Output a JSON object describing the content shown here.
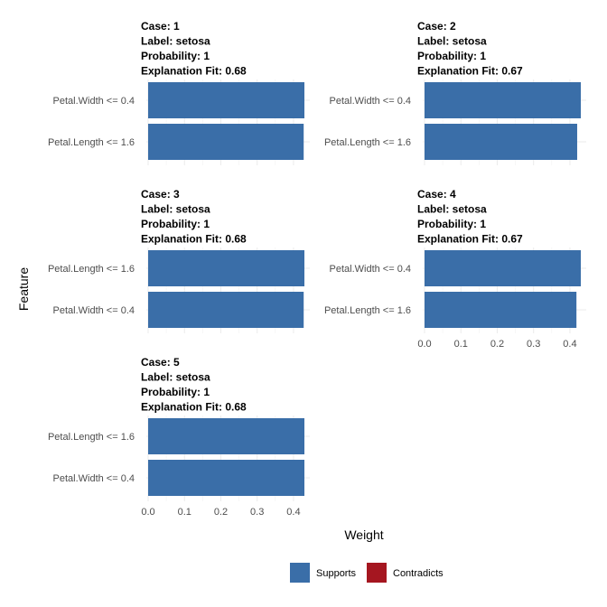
{
  "chart_data": {
    "type": "bar",
    "orientation": "horizontal",
    "xlabel": "Weight",
    "ylabel": "Feature",
    "xlim": [
      0,
      0.43
    ],
    "x_ticks": [
      "0.0",
      "0.1",
      "0.2",
      "0.3",
      "0.4"
    ],
    "grid": true,
    "colors": {
      "Supports": "#3a6ea8",
      "Contradicts": "#a51620"
    },
    "legend": {
      "position": "bottom",
      "items": [
        {
          "label": "Supports",
          "color": "#3a6ea8"
        },
        {
          "label": "Contradicts",
          "color": "#a51620"
        }
      ]
    },
    "facets": [
      {
        "title_lines": [
          "Case: 1",
          "Label: setosa",
          "Probability: 1",
          "Explanation Fit: 0.68"
        ],
        "bars": [
          {
            "feature": "Petal.Width <= 0.4",
            "weight": 0.43,
            "type": "Supports"
          },
          {
            "feature": "Petal.Length <= 1.6",
            "weight": 0.428,
            "type": "Supports"
          }
        ]
      },
      {
        "title_lines": [
          "Case: 2",
          "Label: setosa",
          "Probability: 1",
          "Explanation Fit: 0.67"
        ],
        "bars": [
          {
            "feature": "Petal.Width <= 0.4",
            "weight": 0.43,
            "type": "Supports"
          },
          {
            "feature": "Petal.Length <= 1.6",
            "weight": 0.42,
            "type": "Supports"
          }
        ]
      },
      {
        "title_lines": [
          "Case: 3",
          "Label: setosa",
          "Probability: 1",
          "Explanation Fit: 0.68"
        ],
        "bars": [
          {
            "feature": "Petal.Length <= 1.6",
            "weight": 0.43,
            "type": "Supports"
          },
          {
            "feature": "Petal.Width <= 0.4",
            "weight": 0.428,
            "type": "Supports"
          }
        ]
      },
      {
        "title_lines": [
          "Case: 4",
          "Label: setosa",
          "Probability: 1",
          "Explanation Fit: 0.67"
        ],
        "bars": [
          {
            "feature": "Petal.Width <= 0.4",
            "weight": 0.43,
            "type": "Supports"
          },
          {
            "feature": "Petal.Length <= 1.6",
            "weight": 0.418,
            "type": "Supports"
          }
        ]
      },
      {
        "title_lines": [
          "Case: 5",
          "Label: setosa",
          "Probability: 1",
          "Explanation Fit: 0.68"
        ],
        "bars": [
          {
            "feature": "Petal.Length <= 1.6",
            "weight": 0.43,
            "type": "Supports"
          },
          {
            "feature": "Petal.Width <= 0.4",
            "weight": 0.43,
            "type": "Supports"
          }
        ]
      }
    ]
  }
}
